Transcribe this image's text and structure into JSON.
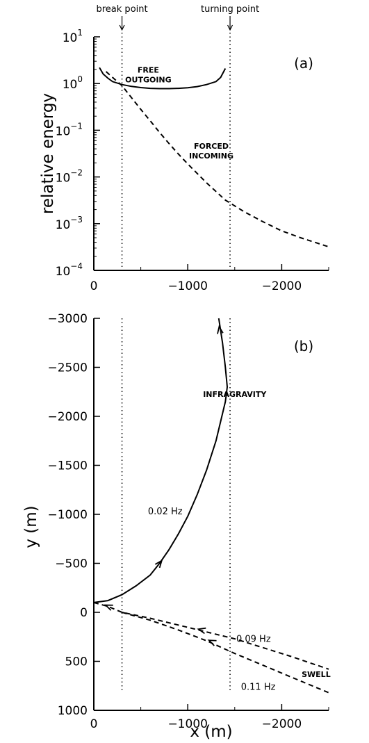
{
  "chart_data": [
    {
      "type": "line",
      "panel_label": "(a)",
      "ylabel": "relative energy",
      "xlabel": "",
      "xlim": [
        0,
        -2500
      ],
      "ylim": [
        0.0001,
        10
      ],
      "yscale": "log",
      "x_ticks": [
        {
          "value": 0,
          "label": "0"
        },
        {
          "value": -1000,
          "label": "−1000"
        },
        {
          "value": -2000,
          "label": "−2000"
        }
      ],
      "y_ticks": [
        {
          "value": 10,
          "base": "10",
          "exp": "1"
        },
        {
          "value": 1,
          "base": "10",
          "exp": "0"
        },
        {
          "value": 0.1,
          "base": "10",
          "exp": "−1"
        },
        {
          "value": 0.01,
          "base": "10",
          "exp": "−2"
        },
        {
          "value": 0.001,
          "base": "10",
          "exp": "−3"
        },
        {
          "value": 0.0001,
          "base": "10",
          "exp": "−4"
        }
      ],
      "reference_lines": [
        {
          "x": -300,
          "label": "break point"
        },
        {
          "x": -1450,
          "label": "turning point"
        }
      ],
      "series": [
        {
          "name": "FREE OUTGOING",
          "style": "solid",
          "points": [
            [
              -60,
              2.2
            ],
            [
              -100,
              1.6
            ],
            [
              -150,
              1.3
            ],
            [
              -200,
              1.1
            ],
            [
              -300,
              0.95
            ],
            [
              -400,
              0.87
            ],
            [
              -500,
              0.82
            ],
            [
              -600,
              0.79
            ],
            [
              -700,
              0.78
            ],
            [
              -800,
              0.78
            ],
            [
              -900,
              0.79
            ],
            [
              -1000,
              0.81
            ],
            [
              -1100,
              0.86
            ],
            [
              -1200,
              0.95
            ],
            [
              -1300,
              1.1
            ],
            [
              -1350,
              1.35
            ],
            [
              -1400,
              2.1
            ]
          ]
        },
        {
          "name": "FORCED INCOMING",
          "style": "dashed",
          "points": [
            [
              -130,
              1.8
            ],
            [
              -200,
              1.35
            ],
            [
              -300,
              0.9
            ],
            [
              -400,
              0.5
            ],
            [
              -500,
              0.28
            ],
            [
              -600,
              0.16
            ],
            [
              -700,
              0.09
            ],
            [
              -800,
              0.052
            ],
            [
              -900,
              0.031
            ],
            [
              -1000,
              0.019
            ],
            [
              -1200,
              0.0075
            ],
            [
              -1400,
              0.0032
            ],
            [
              -1600,
              0.0018
            ],
            [
              -1800,
              0.0011
            ],
            [
              -2000,
              0.0007
            ],
            [
              -2200,
              0.0005
            ],
            [
              -2500,
              0.00032
            ]
          ]
        }
      ],
      "annotations": [
        {
          "lines": [
            "FREE",
            "OUTGOING"
          ],
          "x": -580,
          "y": 1.7
        },
        {
          "lines": [
            "FORCED",
            "INCOMING"
          ],
          "x": -1250,
          "y": 0.04
        }
      ]
    },
    {
      "type": "line",
      "panel_label": "(b)",
      "xlabel": "x (m)",
      "ylabel": "y (m)",
      "xlim": [
        0,
        -2500
      ],
      "ylim": [
        1000,
        -3000
      ],
      "x_ticks": [
        {
          "value": 0,
          "label": "0"
        },
        {
          "value": -1000,
          "label": "−1000"
        },
        {
          "value": -2000,
          "label": "−2000"
        }
      ],
      "y_ticks": [
        {
          "value": -3000,
          "label": "−3000"
        },
        {
          "value": -2500,
          "label": "−2500"
        },
        {
          "value": -2000,
          "label": "−2000"
        },
        {
          "value": -1500,
          "label": "−1500"
        },
        {
          "value": -1000,
          "label": "−1000"
        },
        {
          "value": -500,
          "label": "−500"
        },
        {
          "value": 0,
          "label": "0"
        },
        {
          "value": 500,
          "label": "500"
        },
        {
          "value": 1000,
          "label": "1000"
        }
      ],
      "reference_lines": [
        {
          "x": -300,
          "label": ""
        },
        {
          "x": -1450,
          "label": ""
        }
      ],
      "series": [
        {
          "name": "0.02 Hz",
          "style": "solid",
          "points": [
            [
              0,
              -100
            ],
            [
              -150,
              -120
            ],
            [
              -300,
              -180
            ],
            [
              -450,
              -270
            ],
            [
              -600,
              -380
            ],
            [
              -700,
              -500
            ],
            [
              -800,
              -640
            ],
            [
              -900,
              -800
            ],
            [
              -1000,
              -980
            ],
            [
              -1100,
              -1200
            ],
            [
              -1200,
              -1450
            ],
            [
              -1300,
              -1750
            ],
            [
              -1400,
              -2150
            ],
            [
              -1420,
              -2300
            ],
            [
              -1400,
              -2500
            ],
            [
              -1370,
              -2750
            ],
            [
              -1330,
              -3000
            ]
          ],
          "arrows": [
            [
              -700,
              -500
            ],
            [
              -1340,
              -2880
            ]
          ]
        },
        {
          "name": "0.09 Hz",
          "style": "dashed",
          "points": [
            [
              0,
              -100
            ],
            [
              -150,
              -60
            ],
            [
              -300,
              0
            ],
            [
              -600,
              60
            ],
            [
              -900,
              130
            ],
            [
              -1200,
              200
            ],
            [
              -1500,
              270
            ],
            [
              -1800,
              360
            ],
            [
              -2100,
              450
            ],
            [
              -2500,
              580
            ]
          ],
          "arrows": [
            [
              -1150,
              180
            ],
            [
              -160,
              -60
            ]
          ]
        },
        {
          "name": "0.11 Hz",
          "style": "dashed",
          "points": [
            [
              -300,
              0
            ],
            [
              -600,
              80
            ],
            [
              -900,
              180
            ],
            [
              -1200,
              290
            ],
            [
              -1500,
              420
            ],
            [
              -1800,
              540
            ],
            [
              -2100,
              660
            ],
            [
              -2500,
              820
            ]
          ],
          "arrows": [
            [
              -1260,
              300
            ]
          ]
        }
      ],
      "annotations": [
        {
          "lines": [
            "INFRAGRAVITY"
          ],
          "x": -1500,
          "y": -2200
        },
        {
          "lines": [
            "0.02 Hz"
          ],
          "x": -760,
          "y": -1000
        },
        {
          "lines": [
            "0.09 Hz"
          ],
          "x": -1700,
          "y": 300
        },
        {
          "lines": [
            "0.11 Hz"
          ],
          "x": -1750,
          "y": 790
        },
        {
          "lines": [
            "SWELL"
          ],
          "x": -2520,
          "y": 660
        }
      ]
    }
  ]
}
